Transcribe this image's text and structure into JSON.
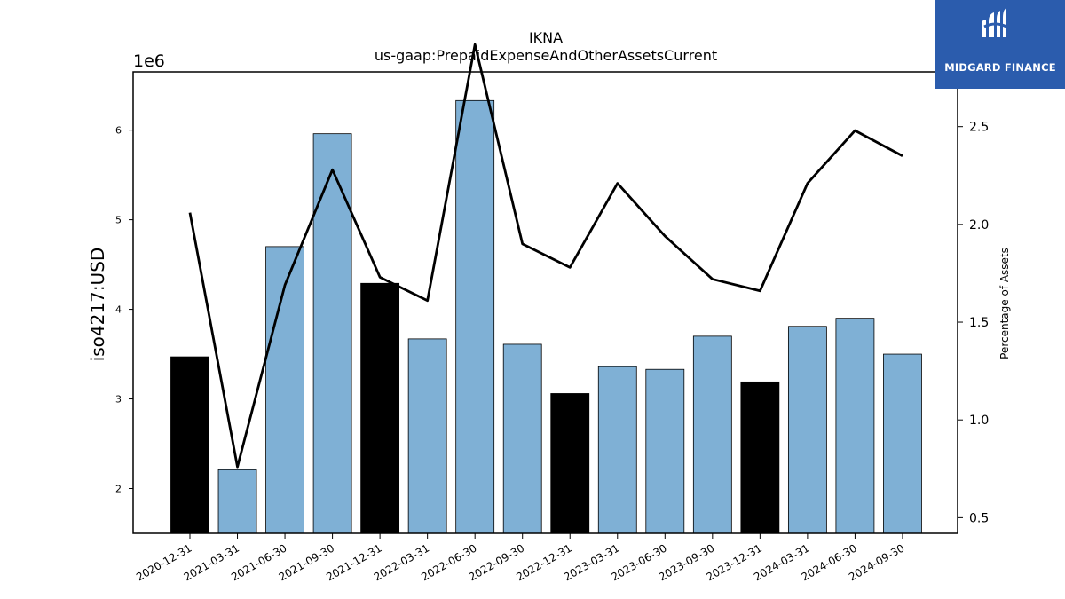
{
  "chart_data": {
    "type": "bar",
    "title": "IKNA",
    "subtitle": "us-gaap:PrepaidExpenseAndOtherAssetsCurrent",
    "ylabel": "iso4217:USD",
    "y2label": "Percentage of Assets",
    "y_offset_label": "1e6",
    "categories": [
      "2020-12-31",
      "2021-03-31",
      "2021-06-30",
      "2021-09-30",
      "2021-12-31",
      "2022-03-31",
      "2022-06-30",
      "2022-09-30",
      "2022-12-31",
      "2023-03-31",
      "2023-06-30",
      "2023-09-30",
      "2023-12-31",
      "2024-03-31",
      "2024-06-30",
      "2024-09-30"
    ],
    "values": [
      3470000,
      2210000,
      4700000,
      5960000,
      4290000,
      3670000,
      6330000,
      3610000,
      3060000,
      3360000,
      3330000,
      3700000,
      3190000,
      3810000,
      3900000,
      3500000
    ],
    "bar_colors": [
      "#000000",
      "#7fb0d5",
      "#7fb0d5",
      "#7fb0d5",
      "#000000",
      "#7fb0d5",
      "#7fb0d5",
      "#7fb0d5",
      "#000000",
      "#7fb0d5",
      "#7fb0d5",
      "#7fb0d5",
      "#000000",
      "#7fb0d5",
      "#7fb0d5",
      "#7fb0d5"
    ],
    "line_series": {
      "values": [
        2.06,
        0.76,
        1.69,
        2.28,
        1.73,
        1.61,
        2.92,
        1.9,
        1.78,
        2.21,
        1.94,
        1.72,
        1.66,
        2.21,
        2.48,
        2.35
      ],
      "color": "#000000"
    },
    "ylim": [
      1500000,
      6650000
    ],
    "y2lim": [
      0.42,
      2.78
    ],
    "yticks": [
      2000000,
      3000000,
      4000000,
      5000000,
      6000000
    ],
    "ytick_labels": [
      "2",
      "3",
      "4",
      "5",
      "6"
    ],
    "y2ticks": [
      0.5,
      1.0,
      1.5,
      2.0,
      2.5
    ],
    "y2tick_labels": [
      "0.5",
      "1.0",
      "1.5",
      "2.0",
      "2.5"
    ],
    "grid": false
  },
  "logo": {
    "text": "MIDGARD FINANCE",
    "background": "#2b5cad"
  }
}
